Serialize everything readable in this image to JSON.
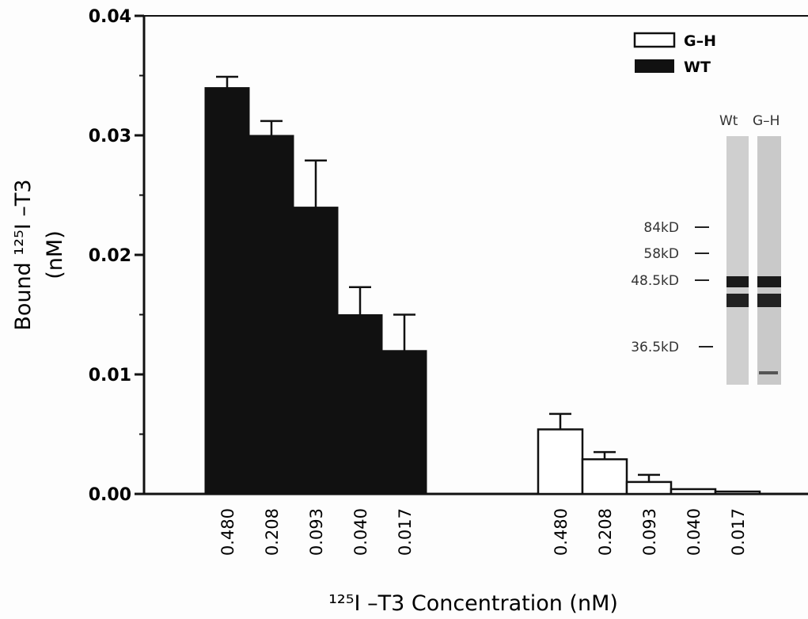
{
  "chart_data": {
    "type": "bar",
    "xlabel": "¹²⁵I –T3 Concentration (nM)",
    "ylabel_line1": "Bound ¹²⁵I –T3",
    "ylabel_line2": "(nM)",
    "ylim": [
      0,
      0.04
    ],
    "yticks": [
      "0.00",
      "0.01",
      "0.02",
      "0.03",
      "0.04"
    ],
    "categories": [
      "0.480",
      "0.208",
      "0.093",
      "0.040",
      "0.017"
    ],
    "series": [
      {
        "name": "WT",
        "fill": "#111111",
        "values": [
          0.034,
          0.03,
          0.024,
          0.015,
          0.012
        ],
        "errors": [
          0.0009,
          0.0012,
          0.0039,
          0.0023,
          0.003
        ]
      },
      {
        "name": "G–H",
        "fill": "#ffffff",
        "values": [
          0.0054,
          0.0029,
          0.001,
          0.0004,
          0.0002
        ],
        "errors": [
          0.0013,
          0.0006,
          0.0006,
          0.0,
          0.0
        ]
      }
    ],
    "legend_position": "top-right",
    "grid": false
  },
  "gel_inset": {
    "lanes": [
      "Wt",
      "G–H"
    ],
    "markers": [
      "84kD",
      "58kD",
      "48.5kD",
      "36.5kD"
    ]
  }
}
